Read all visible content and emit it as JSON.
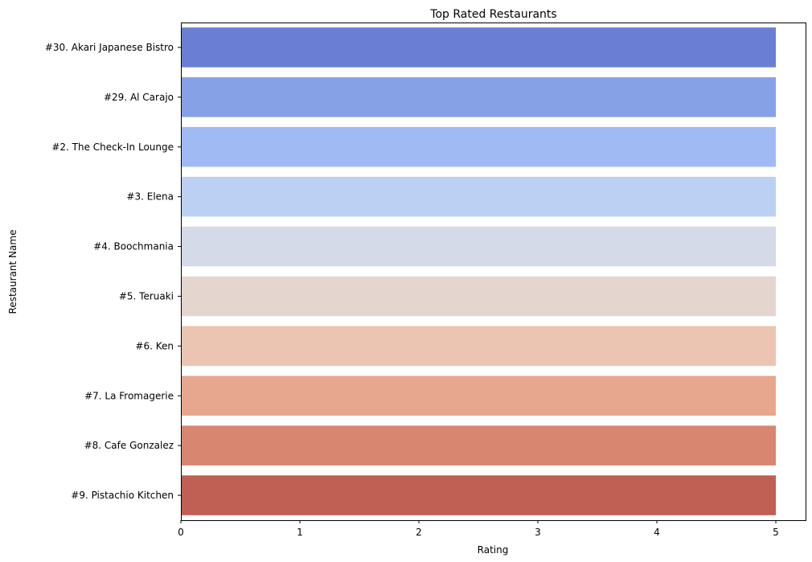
{
  "chart_data": {
    "type": "bar",
    "orientation": "horizontal",
    "title": "Top Rated Restaurants",
    "xlabel": "Rating",
    "ylabel": "Restaurant Name",
    "xlim": [
      0,
      5.25
    ],
    "xticks": [
      "0",
      "1",
      "2",
      "3",
      "4",
      "5"
    ],
    "grid": false,
    "categories": [
      "#30. Akari Japanese Bistro",
      "#29. Al Carajo",
      "#2. The Check-In Lounge",
      "#3. Elena",
      "#4. Boochmania",
      "#5. Teruaki",
      "#6. Ken",
      "#7. La Fromagerie",
      "#8. Cafe Gonzalez",
      "#9. Pistachio Kitchen"
    ],
    "values": [
      5,
      5,
      5,
      5,
      5,
      5,
      5,
      5,
      5,
      5
    ],
    "colors": [
      "#6a7fd4",
      "#86a1e6",
      "#a0baf4",
      "#bcd0f3",
      "#d4dae7",
      "#e4d6cf",
      "#ecc4b2",
      "#e7a78e",
      "#d88670",
      "#c05f53"
    ]
  }
}
